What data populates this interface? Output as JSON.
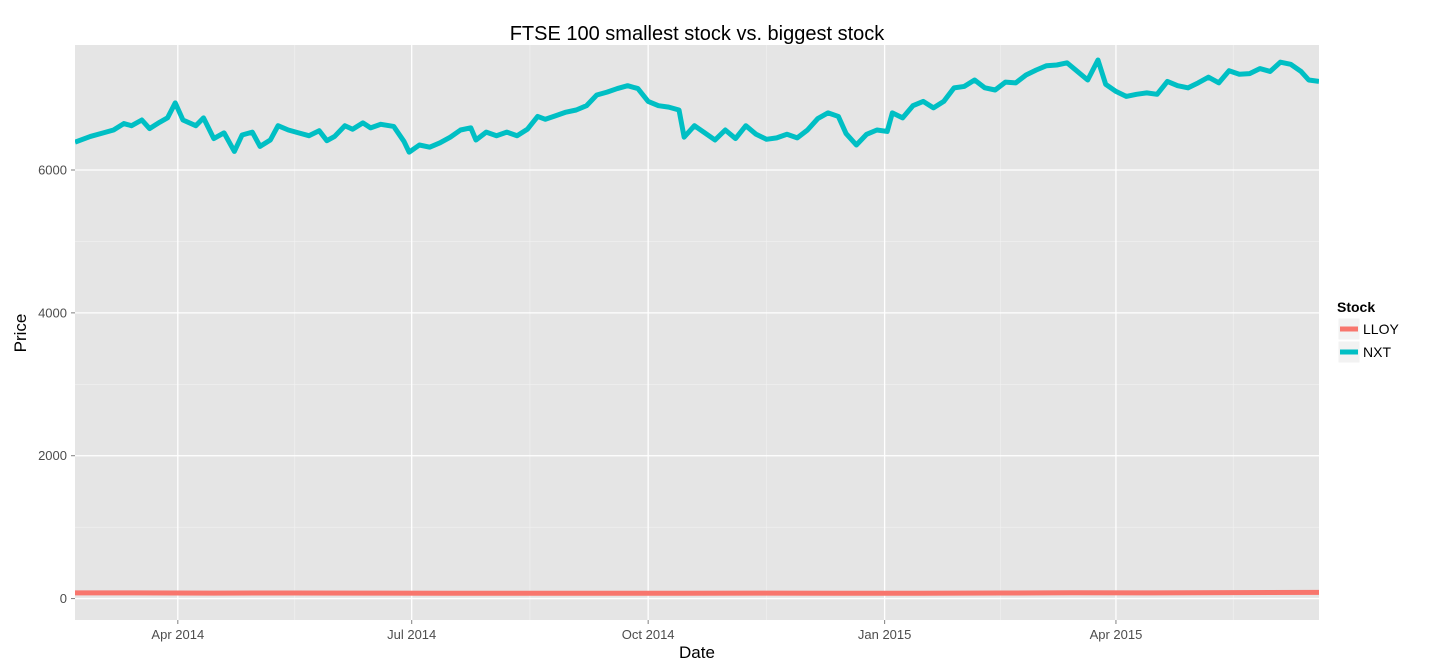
{
  "chart_data": {
    "type": "line",
    "title": "FTSE 100 smallest stock vs. biggest stock",
    "xlabel": "Date",
    "ylabel": "Price",
    "x_range": [
      "2014-02-20",
      "2015-06-19"
    ],
    "ylim": [
      -300,
      7750
    ],
    "x_ticks": [
      {
        "date": "2014-04-01",
        "label": "Apr 2014"
      },
      {
        "date": "2014-07-01",
        "label": "Jul 2014"
      },
      {
        "date": "2014-10-01",
        "label": "Oct 2014"
      },
      {
        "date": "2015-01-01",
        "label": "Jan 2015"
      },
      {
        "date": "2015-04-01",
        "label": "Apr 2015"
      }
    ],
    "y_ticks": [
      {
        "value": 0,
        "label": "0"
      },
      {
        "value": 2000,
        "label": "2000"
      },
      {
        "value": 4000,
        "label": "4000"
      },
      {
        "value": 6000,
        "label": "6000"
      }
    ],
    "grid": true,
    "legend": {
      "title": "Stock",
      "position": "right"
    },
    "series": [
      {
        "name": "LLOY",
        "color": "#F8766D",
        "points": [
          [
            "2014-02-20",
            80
          ],
          [
            "2014-03-15",
            79
          ],
          [
            "2014-04-15",
            77
          ],
          [
            "2014-05-15",
            78
          ],
          [
            "2014-06-15",
            76
          ],
          [
            "2014-07-15",
            75
          ],
          [
            "2014-08-15",
            74
          ],
          [
            "2014-09-15",
            75
          ],
          [
            "2014-10-15",
            74
          ],
          [
            "2014-11-15",
            76
          ],
          [
            "2014-12-15",
            74
          ],
          [
            "2015-01-15",
            75
          ],
          [
            "2015-02-15",
            78
          ],
          [
            "2015-03-15",
            81
          ],
          [
            "2015-04-15",
            80
          ],
          [
            "2015-05-15",
            84
          ],
          [
            "2015-06-19",
            86
          ]
        ]
      },
      {
        "name": "NXT",
        "color": "#00BFC4",
        "points": [
          [
            "2014-02-20",
            6390
          ],
          [
            "2014-02-26",
            6470
          ],
          [
            "2014-03-03",
            6520
          ],
          [
            "2014-03-07",
            6560
          ],
          [
            "2014-03-11",
            6650
          ],
          [
            "2014-03-14",
            6620
          ],
          [
            "2014-03-18",
            6700
          ],
          [
            "2014-03-21",
            6580
          ],
          [
            "2014-03-25",
            6670
          ],
          [
            "2014-03-28",
            6730
          ],
          [
            "2014-03-31",
            6940
          ],
          [
            "2014-04-03",
            6700
          ],
          [
            "2014-04-08",
            6620
          ],
          [
            "2014-04-11",
            6730
          ],
          [
            "2014-04-15",
            6440
          ],
          [
            "2014-04-19",
            6520
          ],
          [
            "2014-04-23",
            6260
          ],
          [
            "2014-04-26",
            6490
          ],
          [
            "2014-04-30",
            6530
          ],
          [
            "2014-05-03",
            6330
          ],
          [
            "2014-05-07",
            6420
          ],
          [
            "2014-05-10",
            6620
          ],
          [
            "2014-05-14",
            6560
          ],
          [
            "2014-05-18",
            6520
          ],
          [
            "2014-05-22",
            6480
          ],
          [
            "2014-05-26",
            6550
          ],
          [
            "2014-05-29",
            6410
          ],
          [
            "2014-06-01",
            6470
          ],
          [
            "2014-06-05",
            6620
          ],
          [
            "2014-06-08",
            6570
          ],
          [
            "2014-06-12",
            6660
          ],
          [
            "2014-06-15",
            6590
          ],
          [
            "2014-06-19",
            6640
          ],
          [
            "2014-06-24",
            6610
          ],
          [
            "2014-06-28",
            6400
          ],
          [
            "2014-06-30",
            6250
          ],
          [
            "2014-07-04",
            6350
          ],
          [
            "2014-07-08",
            6320
          ],
          [
            "2014-07-12",
            6380
          ],
          [
            "2014-07-16",
            6460
          ],
          [
            "2014-07-20",
            6560
          ],
          [
            "2014-07-24",
            6590
          ],
          [
            "2014-07-26",
            6420
          ],
          [
            "2014-07-30",
            6530
          ],
          [
            "2014-08-03",
            6480
          ],
          [
            "2014-08-07",
            6530
          ],
          [
            "2014-08-11",
            6480
          ],
          [
            "2014-08-15",
            6570
          ],
          [
            "2014-08-19",
            6750
          ],
          [
            "2014-08-22",
            6710
          ],
          [
            "2014-08-26",
            6760
          ],
          [
            "2014-08-30",
            6810
          ],
          [
            "2014-09-03",
            6840
          ],
          [
            "2014-09-07",
            6900
          ],
          [
            "2014-09-11",
            7050
          ],
          [
            "2014-09-15",
            7090
          ],
          [
            "2014-09-19",
            7140
          ],
          [
            "2014-09-23",
            7180
          ],
          [
            "2014-09-27",
            7140
          ],
          [
            "2014-10-01",
            6960
          ],
          [
            "2014-10-05",
            6900
          ],
          [
            "2014-10-09",
            6880
          ],
          [
            "2014-10-13",
            6840
          ],
          [
            "2014-10-15",
            6460
          ],
          [
            "2014-10-19",
            6620
          ],
          [
            "2014-10-23",
            6520
          ],
          [
            "2014-10-27",
            6420
          ],
          [
            "2014-10-31",
            6560
          ],
          [
            "2014-11-04",
            6440
          ],
          [
            "2014-11-08",
            6620
          ],
          [
            "2014-11-12",
            6500
          ],
          [
            "2014-11-16",
            6430
          ],
          [
            "2014-11-20",
            6450
          ],
          [
            "2014-11-24",
            6500
          ],
          [
            "2014-11-28",
            6450
          ],
          [
            "2014-12-02",
            6560
          ],
          [
            "2014-12-06",
            6720
          ],
          [
            "2014-12-10",
            6800
          ],
          [
            "2014-12-14",
            6750
          ],
          [
            "2014-12-17",
            6510
          ],
          [
            "2014-12-21",
            6350
          ],
          [
            "2014-12-25",
            6500
          ],
          [
            "2014-12-29",
            6560
          ],
          [
            "2015-01-02",
            6540
          ],
          [
            "2015-01-04",
            6800
          ],
          [
            "2015-01-08",
            6730
          ],
          [
            "2015-01-12",
            6900
          ],
          [
            "2015-01-16",
            6960
          ],
          [
            "2015-01-20",
            6870
          ],
          [
            "2015-01-24",
            6960
          ],
          [
            "2015-01-28",
            7150
          ],
          [
            "2015-02-01",
            7170
          ],
          [
            "2015-02-05",
            7260
          ],
          [
            "2015-02-09",
            7150
          ],
          [
            "2015-02-13",
            7120
          ],
          [
            "2015-02-17",
            7230
          ],
          [
            "2015-02-21",
            7220
          ],
          [
            "2015-02-25",
            7330
          ],
          [
            "2015-03-01",
            7400
          ],
          [
            "2015-03-05",
            7460
          ],
          [
            "2015-03-09",
            7470
          ],
          [
            "2015-03-13",
            7500
          ],
          [
            "2015-03-17",
            7380
          ],
          [
            "2015-03-21",
            7260
          ],
          [
            "2015-03-25",
            7540
          ],
          [
            "2015-03-28",
            7200
          ],
          [
            "2015-04-01",
            7100
          ],
          [
            "2015-04-05",
            7030
          ],
          [
            "2015-04-09",
            7060
          ],
          [
            "2015-04-13",
            7080
          ],
          [
            "2015-04-17",
            7060
          ],
          [
            "2015-04-21",
            7240
          ],
          [
            "2015-04-25",
            7180
          ],
          [
            "2015-04-29",
            7150
          ],
          [
            "2015-05-03",
            7220
          ],
          [
            "2015-05-07",
            7300
          ],
          [
            "2015-05-11",
            7220
          ],
          [
            "2015-05-15",
            7390
          ],
          [
            "2015-05-19",
            7340
          ],
          [
            "2015-05-23",
            7350
          ],
          [
            "2015-05-27",
            7420
          ],
          [
            "2015-05-31",
            7380
          ],
          [
            "2015-06-04",
            7510
          ],
          [
            "2015-06-08",
            7480
          ],
          [
            "2015-06-12",
            7380
          ],
          [
            "2015-06-15",
            7260
          ],
          [
            "2015-06-19",
            7240
          ]
        ]
      }
    ]
  }
}
